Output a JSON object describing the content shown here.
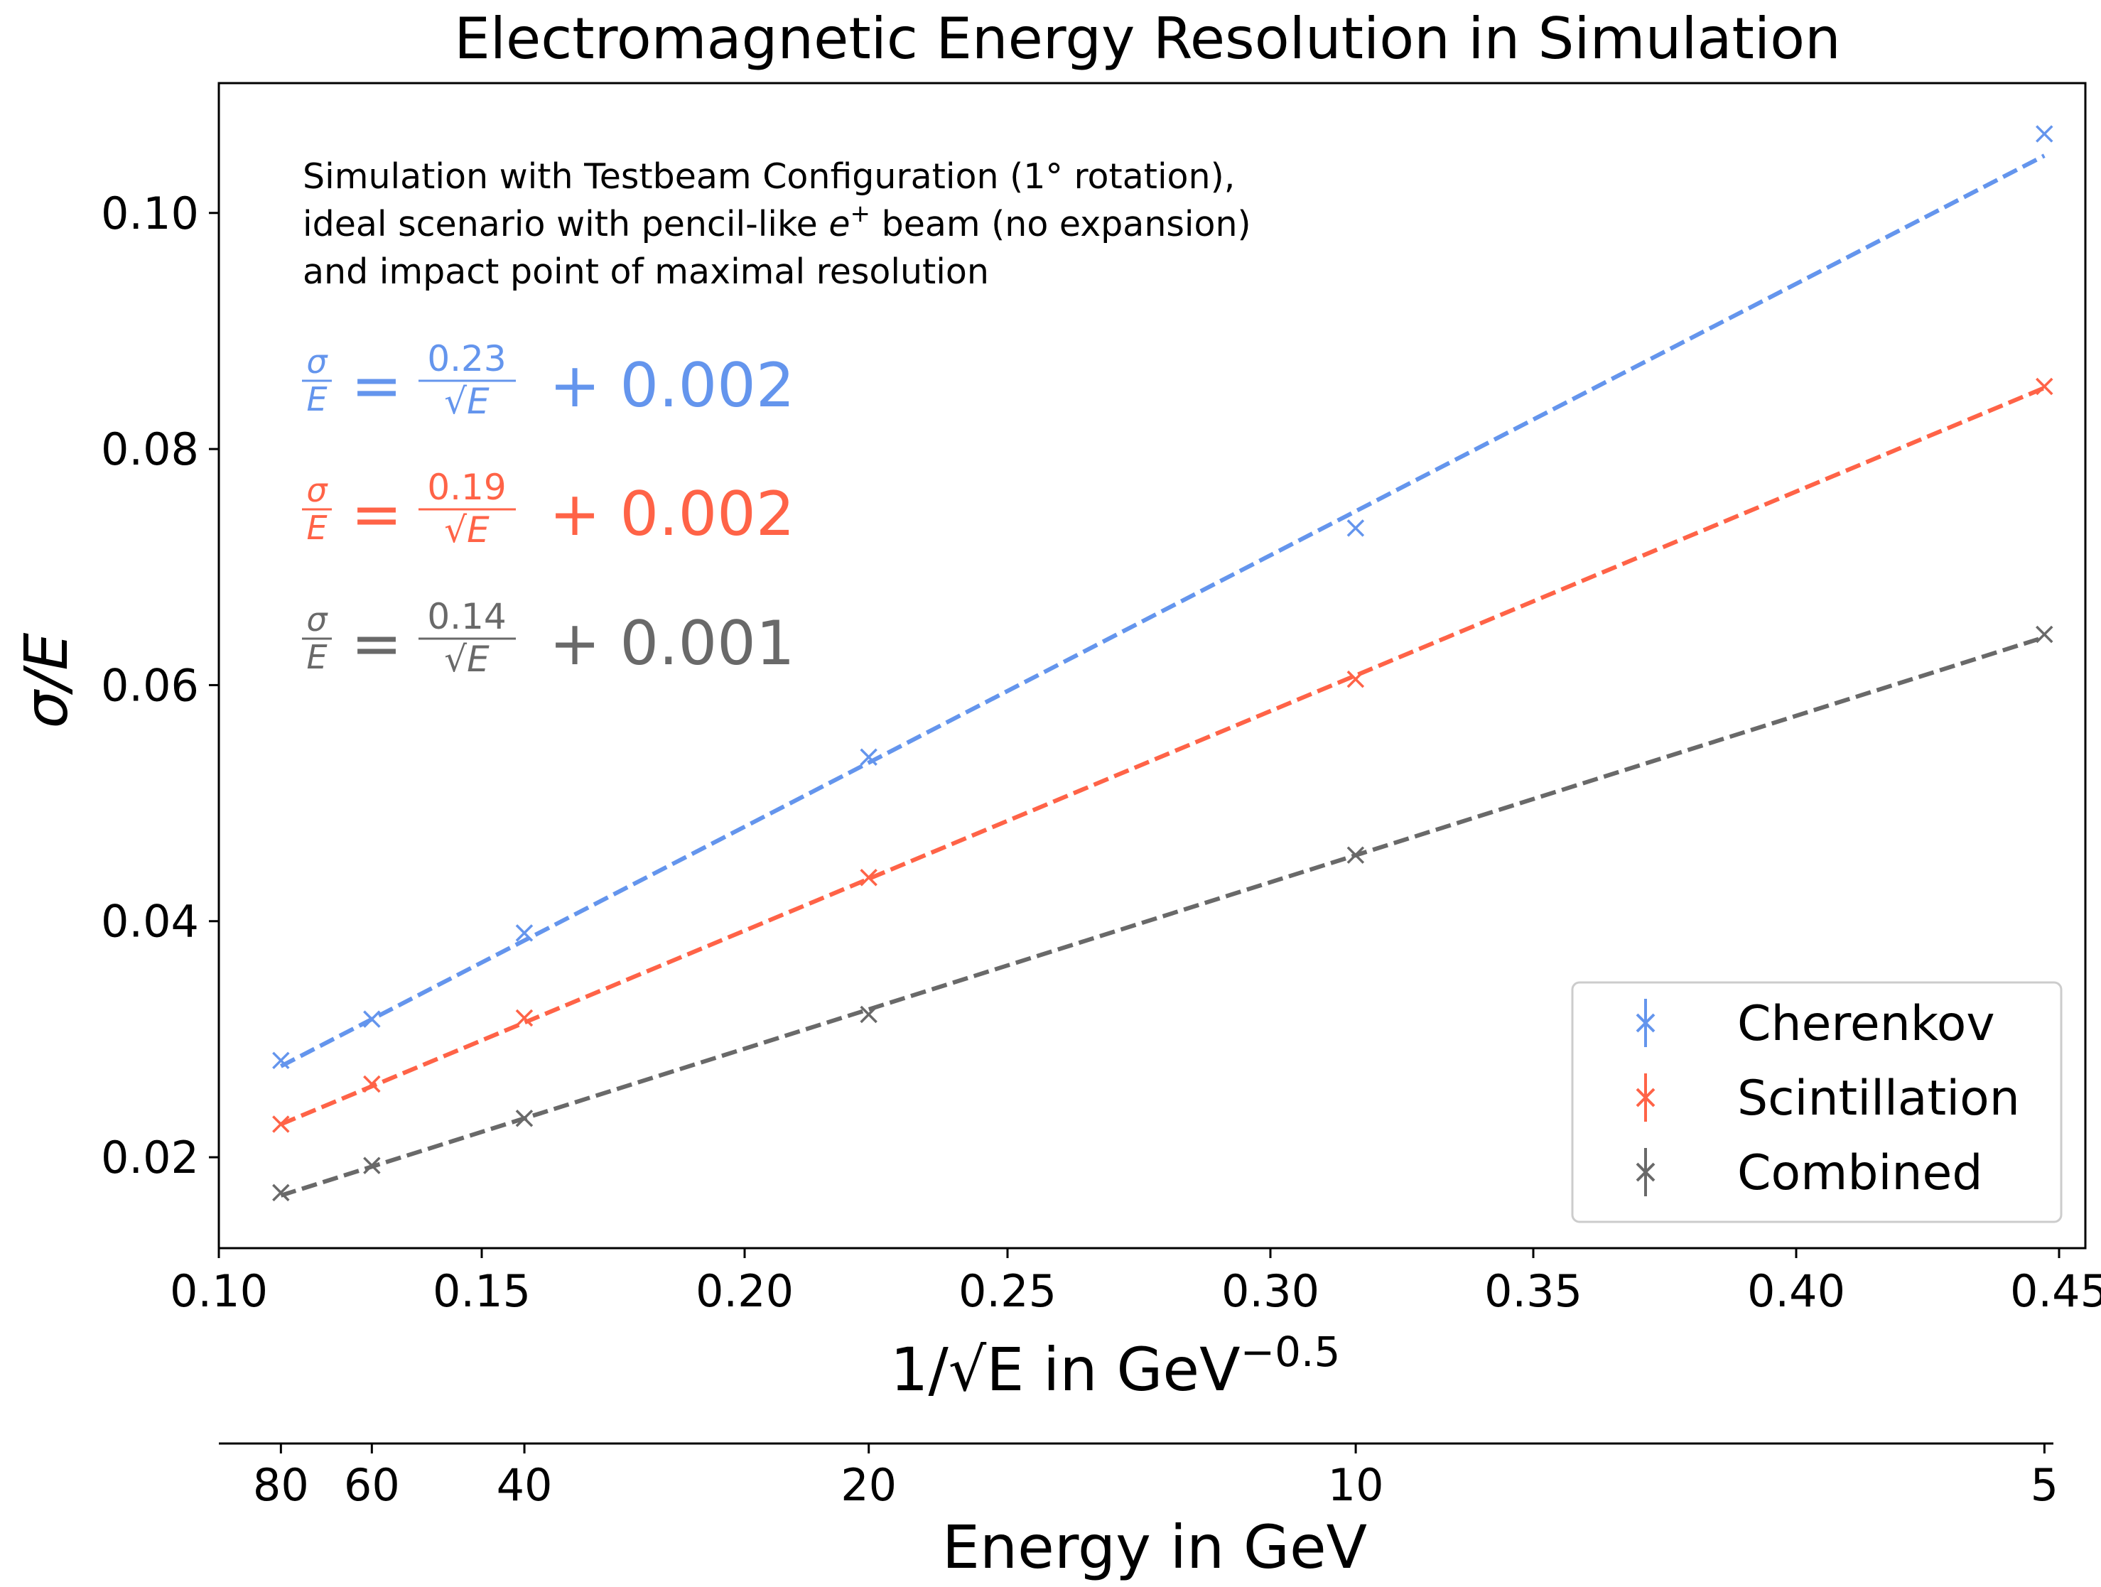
{
  "chart_data": {
    "type": "scatter",
    "title": "Electromagnetic Energy Resolution in Simulation",
    "xlabel": "1/√E  in GeV",
    "xlabel_exponent": "−0.5",
    "ylabel": "σ/E",
    "xlim": [
      0.1,
      0.455
    ],
    "ylim": [
      0.0123,
      0.111
    ],
    "x_ticks": [
      0.1,
      0.15,
      0.2,
      0.25,
      0.3,
      0.35,
      0.4,
      0.45
    ],
    "x_tick_labels": [
      "0.10",
      "0.15",
      "0.20",
      "0.25",
      "0.30",
      "0.35",
      "0.40",
      "0.45"
    ],
    "y_ticks": [
      0.02,
      0.04,
      0.06,
      0.08,
      0.1
    ],
    "y_tick_labels": [
      "0.02",
      "0.04",
      "0.06",
      "0.08",
      "0.10"
    ],
    "secondary_axis": {
      "label": "Energy in GeV",
      "energies": [
        80,
        60,
        40,
        20,
        10,
        5
      ],
      "tick_labels": [
        "80",
        "60",
        "40",
        "20",
        "10",
        "5"
      ]
    },
    "x": [
      0.1118,
      0.1291,
      0.1581,
      0.2236,
      0.3162,
      0.4472
    ],
    "series": [
      {
        "name": "Cherenkov",
        "color": "#6495ed",
        "values": [
          0.0282,
          0.0317,
          0.039,
          0.0539,
          0.0733,
          0.1067
        ],
        "fit": {
          "a": 0.23,
          "b": 0.002
        },
        "fit_label": {
          "lhs_num": "σ",
          "lhs_den": "E",
          "num": "0.23",
          "den": "√E",
          "rest": "+ 0.002"
        }
      },
      {
        "name": "Scintillation",
        "color": "#ff6347",
        "values": [
          0.0228,
          0.0262,
          0.0318,
          0.0437,
          0.0605,
          0.0853
        ],
        "fit": {
          "a": 0.186,
          "b": 0.002
        },
        "fit_label": {
          "lhs_num": "σ",
          "lhs_den": "E",
          "num": "0.19",
          "den": "√E",
          "rest": "+ 0.002"
        }
      },
      {
        "name": "Combined",
        "color": "#696969",
        "values": [
          0.017,
          0.0193,
          0.0233,
          0.0321,
          0.0456,
          0.0643
        ],
        "fit": {
          "a": 0.141,
          "b": 0.001
        },
        "fit_label": {
          "lhs_num": "σ",
          "lhs_den": "E",
          "num": "0.14",
          "den": "√E",
          "rest": "+ 0.001"
        }
      }
    ],
    "annotation": {
      "line1": "Simulation with Testbeam Configuration (1° rotation),",
      "line2_pre": "ideal scenario with pencil-like ",
      "line2_particle": "e",
      "line2_sup": "+",
      "line2_post": " beam (no expansion)",
      "line3": "and impact point of maximal resolution"
    },
    "legend_position": "lower-right"
  }
}
